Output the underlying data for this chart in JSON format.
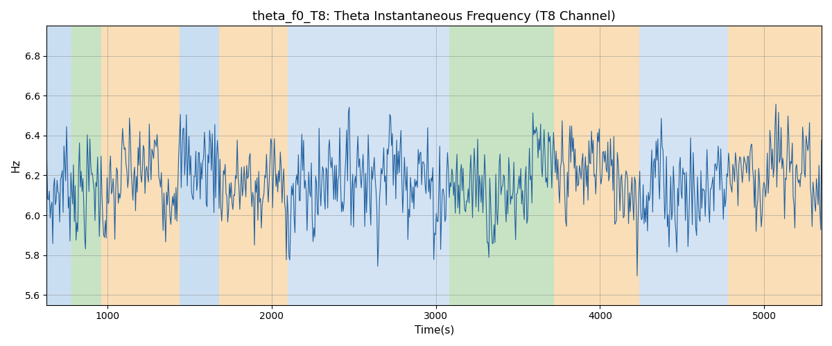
{
  "title": "theta_f0_T8: Theta Instantaneous Frequency (T8 Channel)",
  "xlabel": "Time(s)",
  "ylabel": "Hz",
  "xlim": [
    630,
    5350
  ],
  "ylim": [
    5.55,
    6.95
  ],
  "yticks": [
    5.6,
    5.8,
    6.0,
    6.2,
    6.4,
    6.6,
    6.8
  ],
  "xticks": [
    1000,
    2000,
    3000,
    4000,
    5000
  ],
  "line_color": "#2060a0",
  "line_width": 0.8,
  "signal_seed": 7,
  "signal_n": 900,
  "signal_mean": 6.18,
  "signal_std": 0.13,
  "bg_regions": [
    {
      "xmin": 630,
      "xmax": 780,
      "color": "#a8c8e8",
      "alpha": 0.6
    },
    {
      "xmin": 780,
      "xmax": 960,
      "color": "#90c888",
      "alpha": 0.5
    },
    {
      "xmin": 960,
      "xmax": 1440,
      "color": "#f5c888",
      "alpha": 0.6
    },
    {
      "xmin": 1440,
      "xmax": 1680,
      "color": "#a8c8e8",
      "alpha": 0.6
    },
    {
      "xmin": 1680,
      "xmax": 2100,
      "color": "#f5c888",
      "alpha": 0.6
    },
    {
      "xmin": 2100,
      "xmax": 2880,
      "color": "#a8c8e8",
      "alpha": 0.5
    },
    {
      "xmin": 2880,
      "xmax": 2960,
      "color": "#a8c8e8",
      "alpha": 0.5
    },
    {
      "xmin": 2960,
      "xmax": 3080,
      "color": "#a8c8e8",
      "alpha": 0.5
    },
    {
      "xmin": 3080,
      "xmax": 3560,
      "color": "#90c888",
      "alpha": 0.5
    },
    {
      "xmin": 3560,
      "xmax": 3720,
      "color": "#90c888",
      "alpha": 0.5
    },
    {
      "xmin": 3720,
      "xmax": 4240,
      "color": "#f5c888",
      "alpha": 0.6
    },
    {
      "xmin": 4240,
      "xmax": 4780,
      "color": "#a8c8e8",
      "alpha": 0.5
    },
    {
      "xmin": 4780,
      "xmax": 5350,
      "color": "#f5c888",
      "alpha": 0.6
    }
  ],
  "title_fontsize": 13,
  "axis_label_fontsize": 11,
  "tick_fontsize": 10,
  "figsize": [
    12,
    5
  ],
  "dpi": 100
}
